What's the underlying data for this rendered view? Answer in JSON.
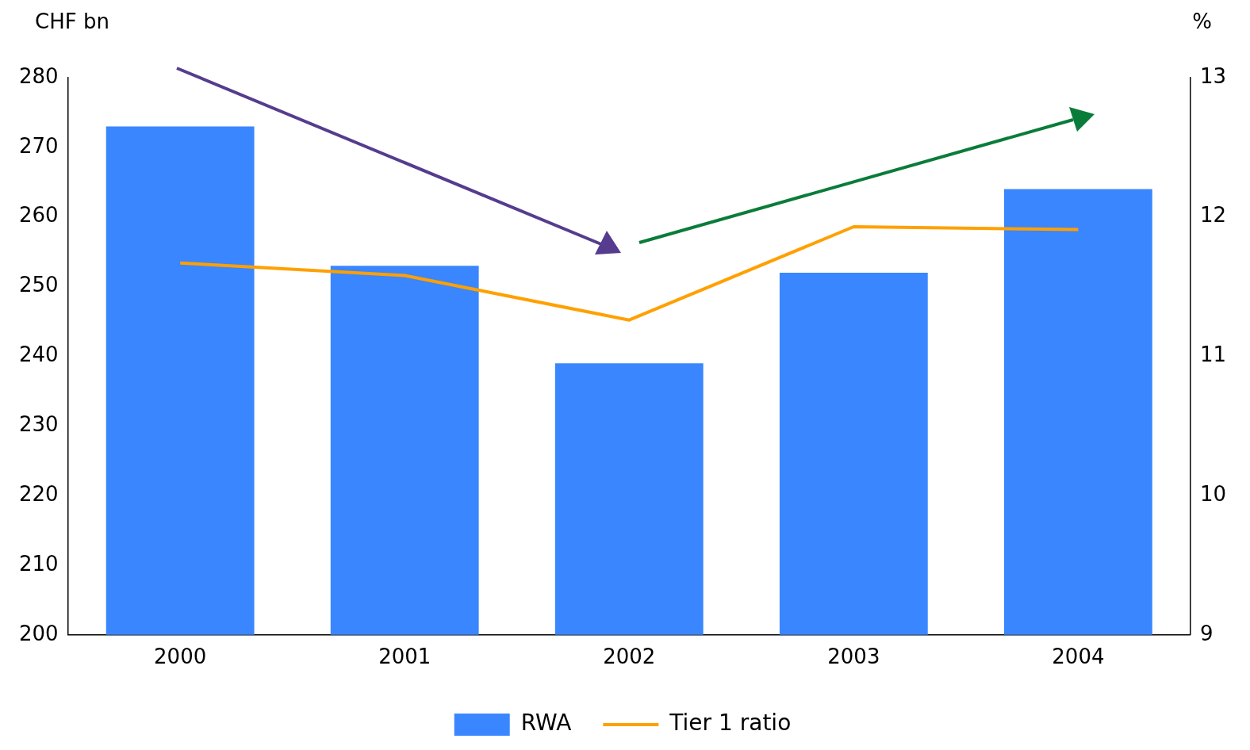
{
  "chart_data": {
    "type": "bar",
    "ylabel": "CHF bn",
    "y2label": "%",
    "categories": [
      "2000",
      "2001",
      "2002",
      "2003",
      "2004"
    ],
    "series": [
      {
        "name": "RWA",
        "color": "#3a86ff",
        "values": [
          273,
          253,
          239,
          252,
          264
        ]
      },
      {
        "name": "Tier 1 ratio",
        "type": "line",
        "axis": "y2",
        "color": "#ffa000",
        "values": [
          11.67,
          11.58,
          11.26,
          11.93,
          11.91
        ]
      }
    ],
    "ylim": [
      200,
      280
    ],
    "yticks": [
      200,
      210,
      220,
      230,
      240,
      250,
      260,
      270,
      280
    ],
    "y2lim": [
      9,
      13
    ],
    "y2ticks": [
      9,
      10,
      11,
      12,
      13
    ],
    "grid": false,
    "legend": "bottom",
    "marker": "none"
  }
}
